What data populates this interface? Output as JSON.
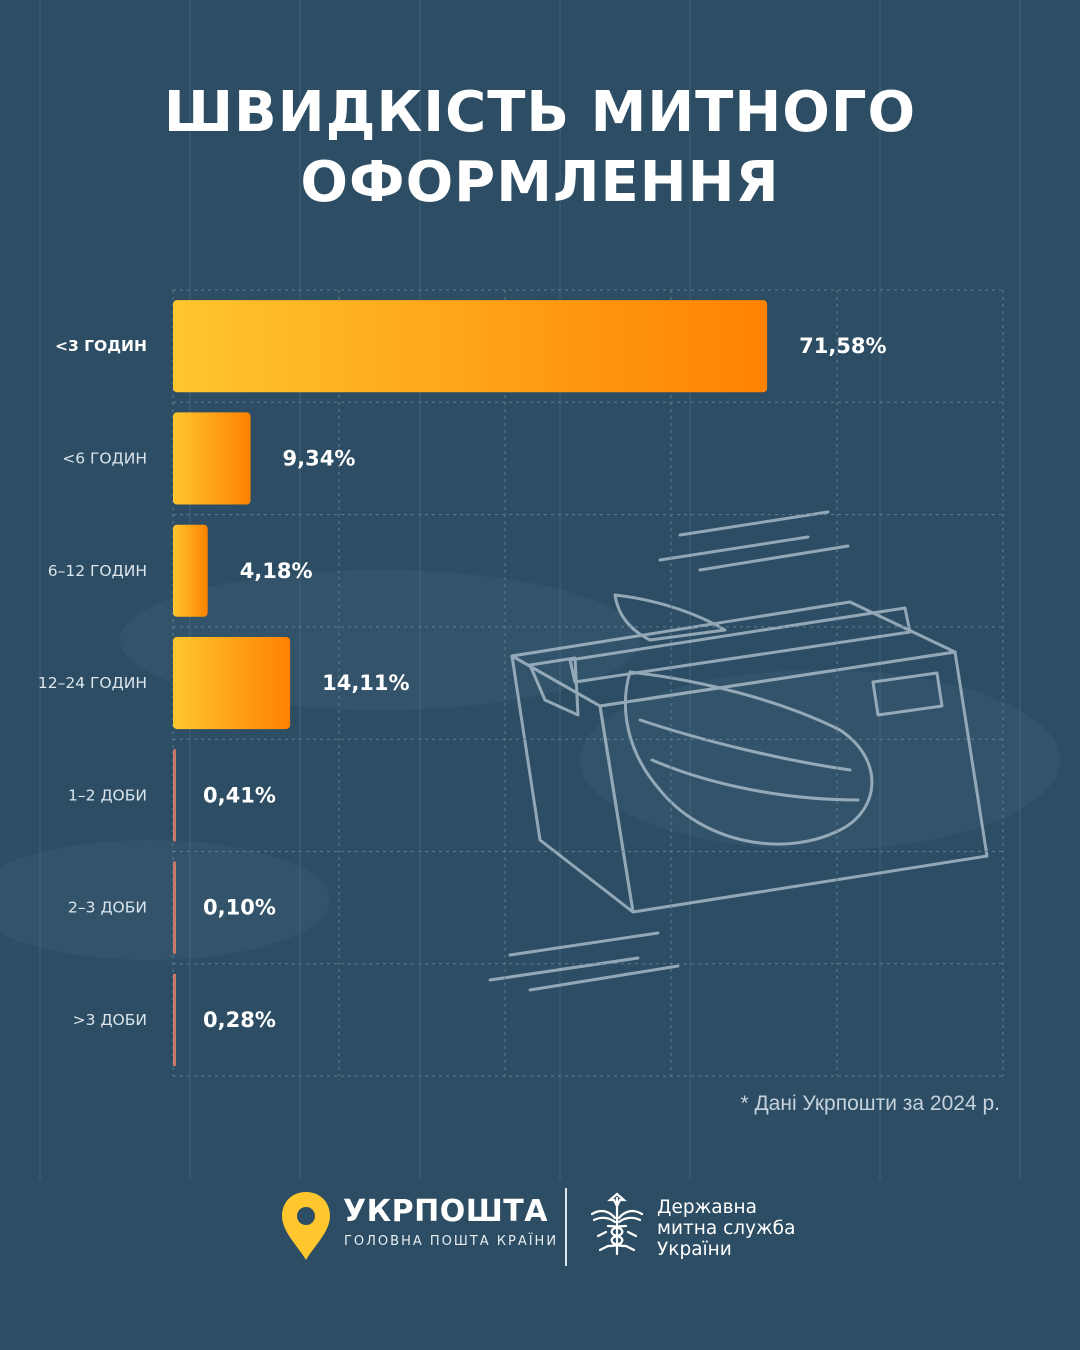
{
  "title": {
    "line1": "ШВИДКІСТЬ МИТНОГО",
    "line2": "ОФОРМЛЕННЯ"
  },
  "chart_data": {
    "type": "bar",
    "orientation": "horizontal",
    "categories": [
      "<3 ГОДИН",
      "<6 ГОДИН",
      "6–12 ГОДИН",
      "12–24 ГОДИН",
      "1–2 ДОБИ",
      "2–3 ДОБИ",
      ">3 ДОБИ"
    ],
    "values": [
      71.58,
      9.34,
      4.18,
      14.11,
      0.41,
      0.1,
      0.28
    ],
    "value_labels": [
      "71,58%",
      "9,34%",
      "4,18%",
      "14,11%",
      "0,41%",
      "0,10%",
      "0,28%"
    ],
    "highlighted_category": "<3 ГОДИН",
    "xlim": [
      0,
      100
    ],
    "grid": true,
    "bar_gradient": [
      "#ffc62e",
      "#ff8200"
    ],
    "small_bar_color": "#c97a68"
  },
  "footnote": "* Дані Укрпошти за 2024 р.",
  "footer": {
    "ukrposhta_name": "УКРПОШТА",
    "ukrposhta_tagline": "ГОЛОВНА ПОШТА КРАЇНИ",
    "customs_name_lines": [
      "Державна",
      "митна служба",
      "України"
    ]
  },
  "colors": {
    "background": "#2c4d63",
    "accent_yellow": "#ffc62e",
    "accent_orange": "#ff8200",
    "grid": "#5f7d92",
    "axis_label": "#dbe5ec"
  }
}
